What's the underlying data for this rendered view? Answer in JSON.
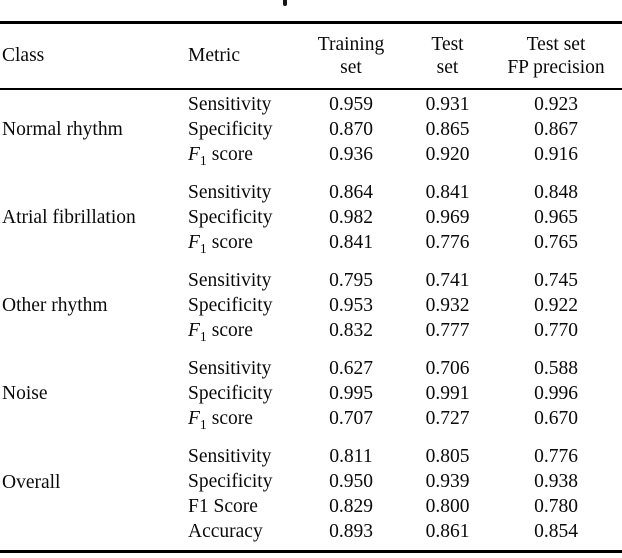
{
  "page": {
    "background": "#ffffff",
    "text_color": "#0a0a0a",
    "rule_color": "#000000"
  },
  "table": {
    "header": {
      "class": "Class",
      "metric": "Metric",
      "training_line1": "Training",
      "training_line2": "set",
      "test_line1": "Test",
      "test_line2": "set",
      "fp_line1": "Test set",
      "fp_line2": "FP precision"
    },
    "groups": [
      {
        "class_label": "Normal rhythm",
        "rows": [
          {
            "prefix": "Sensitivity",
            "sub": "",
            "rest": "",
            "values": [
              "0.959",
              "0.931",
              "0.923"
            ]
          },
          {
            "prefix": "Specificity",
            "sub": "",
            "rest": "",
            "values": [
              "0.870",
              "0.865",
              "0.867"
            ]
          },
          {
            "prefix": "F",
            "sub": "1",
            "rest": "score",
            "values": [
              "0.936",
              "0.920",
              "0.916"
            ]
          }
        ]
      },
      {
        "class_label": "Atrial fibrillation",
        "rows": [
          {
            "prefix": "Sensitivity",
            "sub": "",
            "rest": "",
            "values": [
              "0.864",
              "0.841",
              "0.848"
            ]
          },
          {
            "prefix": "Specificity",
            "sub": "",
            "rest": "",
            "values": [
              "0.982",
              "0.969",
              "0.965"
            ]
          },
          {
            "prefix": "F",
            "sub": "1",
            "rest": "score",
            "values": [
              "0.841",
              "0.776",
              "0.765"
            ]
          }
        ]
      },
      {
        "class_label": "Other rhythm",
        "rows": [
          {
            "prefix": "Sensitivity",
            "sub": "",
            "rest": "",
            "values": [
              "0.795",
              "0.741",
              "0.745"
            ]
          },
          {
            "prefix": "Specificity",
            "sub": "",
            "rest": "",
            "values": [
              "0.953",
              "0.932",
              "0.922"
            ]
          },
          {
            "prefix": "F",
            "sub": "1",
            "rest": "score",
            "values": [
              "0.832",
              "0.777",
              "0.770"
            ]
          }
        ]
      },
      {
        "class_label": "Noise",
        "rows": [
          {
            "prefix": "Sensitivity",
            "sub": "",
            "rest": "",
            "values": [
              "0.627",
              "0.706",
              "0.588"
            ]
          },
          {
            "prefix": "Specificity",
            "sub": "",
            "rest": "",
            "values": [
              "0.995",
              "0.991",
              "0.996"
            ]
          },
          {
            "prefix": "F",
            "sub": "1",
            "rest": "score",
            "values": [
              "0.707",
              "0.727",
              "0.670"
            ]
          }
        ]
      },
      {
        "class_label": "Overall",
        "rows": [
          {
            "prefix": "Sensitivity",
            "sub": "",
            "rest": "",
            "values": [
              "0.811",
              "0.805",
              "0.776"
            ]
          },
          {
            "prefix": "Specificity",
            "sub": "",
            "rest": "",
            "values": [
              "0.950",
              "0.939",
              "0.938"
            ]
          },
          {
            "prefix": "F1 Score",
            "sub": "",
            "rest": "",
            "values": [
              "0.829",
              "0.800",
              "0.780"
            ]
          },
          {
            "prefix": "Accuracy",
            "sub": "",
            "rest": "",
            "values": [
              "0.893",
              "0.861",
              "0.854"
            ]
          }
        ]
      }
    ]
  }
}
